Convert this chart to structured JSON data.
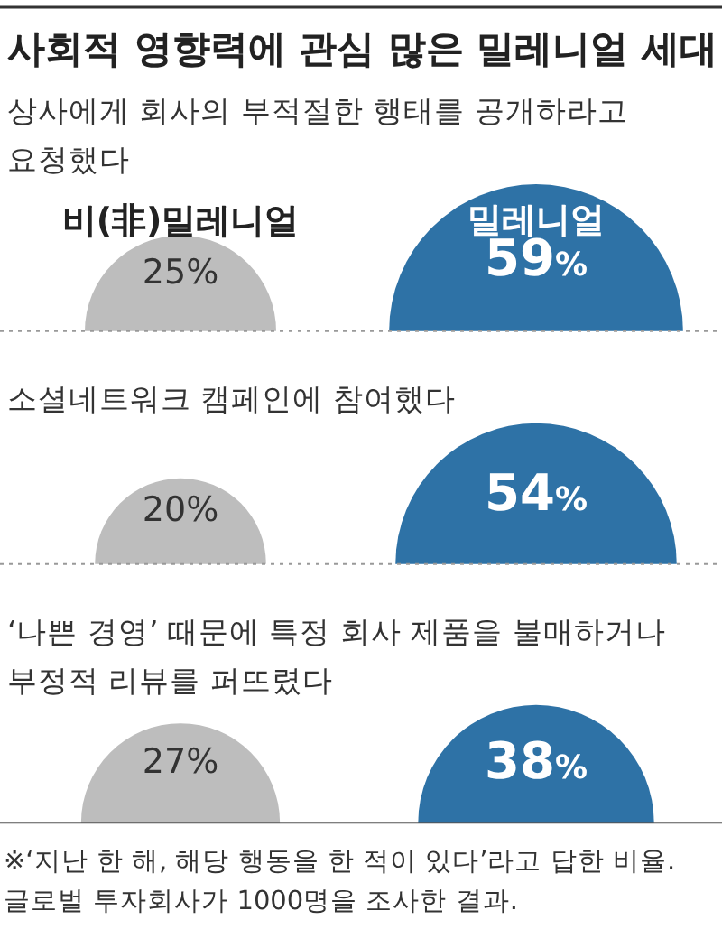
{
  "chart_data": {
    "type": "other",
    "title": "사회적 영향력에 관심 많은 밀레니얼 세대",
    "categories": [
      "상사에게 회사의 부적절한 행태를 공개하라고 요청했다",
      "소셜네트워크 캠페인에 참여했다",
      "‘나쁜 경영’ 때문에 특정 회사 제품을 불매하거나 부정적 리뷰를 퍼뜨렸다"
    ],
    "series": [
      {
        "name": "비(非)밀레니얼",
        "color": "#bdbdbd",
        "values": [
          25,
          20,
          27
        ],
        "value_labels": [
          "25%",
          "20%",
          "27%"
        ]
      },
      {
        "name": "밀레니얼",
        "color": "#2e72a6",
        "values": [
          59,
          54,
          38
        ],
        "value_labels": [
          "59%",
          "54%",
          "38%"
        ]
      }
    ],
    "annotations": [
      "※‘지난 한 해, 해당 행동을 한 적이 있다’라고 답한 비율.",
      "글로벌 투자회사가 1000명을 조사한 결과."
    ]
  }
}
